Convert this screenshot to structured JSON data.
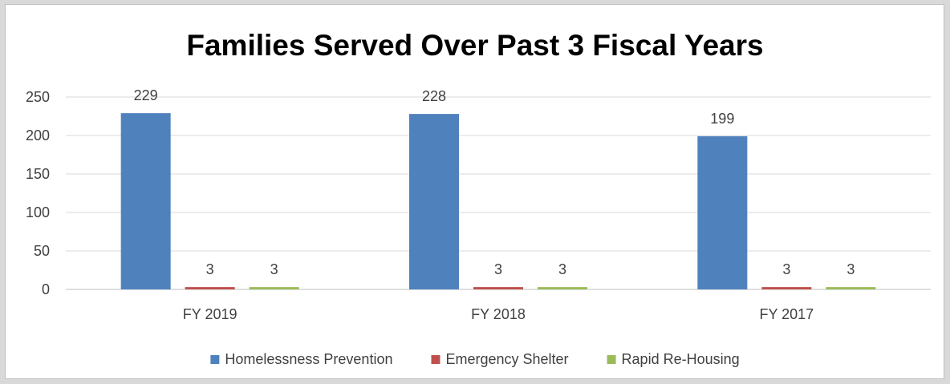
{
  "chart_data": {
    "type": "bar",
    "title": "Families Served Over Past 3 Fiscal Years",
    "xlabel": "",
    "ylabel": "",
    "categories": [
      "FY 2019",
      "FY 2018",
      "FY 2017"
    ],
    "series": [
      {
        "name": "Homelessness Prevention",
        "values": [
          229,
          228,
          199
        ],
        "color": "#4f81bd"
      },
      {
        "name": "Emergency Shelter",
        "values": [
          3,
          3,
          3
        ],
        "color": "#c0504d"
      },
      {
        "name": "Rapid Re-Housing",
        "values": [
          3,
          3,
          3
        ],
        "color": "#9bbb59"
      }
    ],
    "ylim": [
      0,
      250
    ],
    "yticks": [
      0,
      50,
      100,
      150,
      200,
      250
    ],
    "grid": true,
    "legend_position": "bottom",
    "data_labels": true
  }
}
